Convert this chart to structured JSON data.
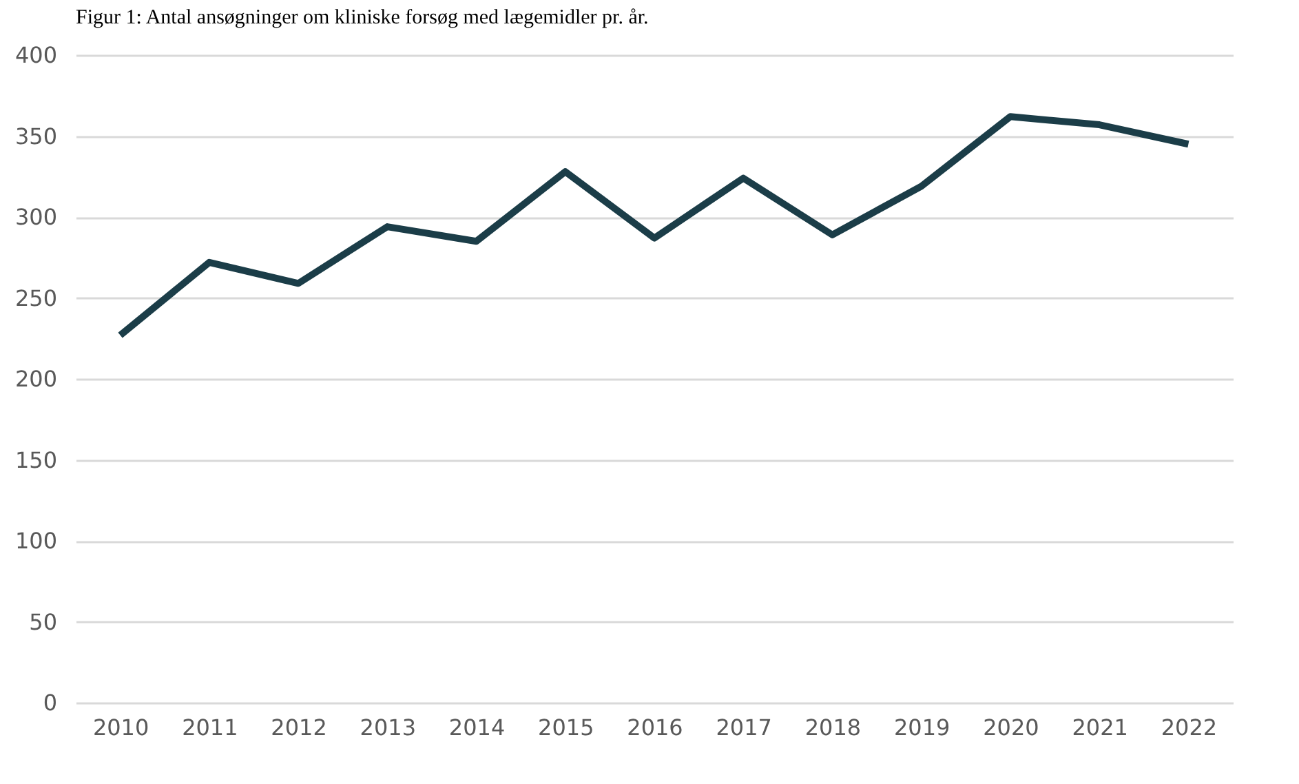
{
  "chart_data": {
    "type": "line",
    "title": "Figur 1: Antal ansøgninger om kliniske forsøg med lægemidler pr. år.",
    "categories": [
      "2010",
      "2011",
      "2012",
      "2013",
      "2014",
      "2015",
      "2016",
      "2017",
      "2018",
      "2019",
      "2020",
      "2021",
      "2022"
    ],
    "series": [
      {
        "color": "#1b3d48",
        "values": [
          227,
          272,
          259,
          294,
          285,
          328,
          287,
          324,
          289,
          319,
          362,
          357,
          345
        ]
      }
    ],
    "ylim": [
      0,
      400
    ],
    "yticks": [
      0,
      50,
      100,
      150,
      200,
      250,
      300,
      350,
      400
    ],
    "grid": "y",
    "legend": false,
    "marker": "none",
    "line_style": "solid"
  }
}
